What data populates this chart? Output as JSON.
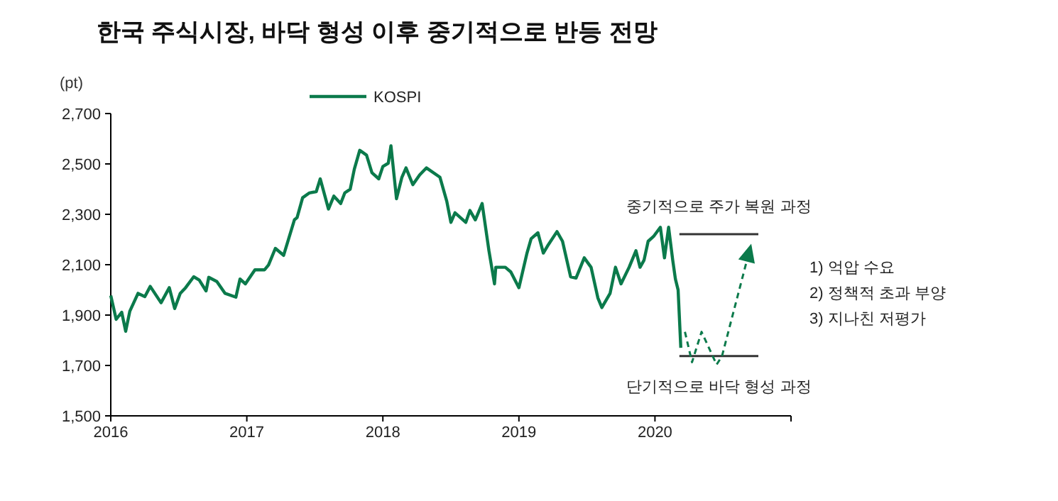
{
  "chart_data": {
    "type": "line",
    "title": "한국 주식시장, 바닥 형성 이후 중기적으로 반등 전망",
    "ylabel": "(pt)",
    "xlim": [
      2016,
      2021
    ],
    "xticks": [
      2016,
      2017,
      2018,
      2019,
      2020,
      {
        "value": 2021,
        "label": null
      }
    ],
    "ylim": [
      1500,
      2700
    ],
    "yticks": [
      {
        "value": 1500,
        "label": "1,500"
      },
      {
        "value": 1700,
        "label": "1,700"
      },
      {
        "value": 1900,
        "label": "1,900"
      },
      {
        "value": 2100,
        "label": "2,100"
      },
      {
        "value": 2300,
        "label": "2,300"
      },
      {
        "value": 2500,
        "label": "2,500"
      },
      {
        "value": 2700,
        "label": "2,700"
      }
    ],
    "grid": false,
    "legend": "top",
    "series": [
      {
        "name": "KOSPI",
        "color": "#0b7a4b",
        "line_style": "solid",
        "x": [
          2016.0,
          2016.04,
          2016.08,
          2016.11,
          2016.14,
          2016.2,
          2016.25,
          2016.29,
          2016.37,
          2016.43,
          2016.47,
          2016.51,
          2016.55,
          2016.61,
          2016.65,
          2016.7,
          2016.72,
          2016.78,
          2016.84,
          2016.92,
          2016.95,
          2016.99,
          2017.06,
          2017.13,
          2017.16,
          2017.21,
          2017.27,
          2017.35,
          2017.37,
          2017.41,
          2017.46,
          2017.51,
          2017.54,
          2017.6,
          2017.64,
          2017.69,
          2017.72,
          2017.76,
          2017.79,
          2017.83,
          2017.88,
          2017.92,
          2017.97,
          2018.0,
          2018.04,
          2018.06,
          2018.1,
          2018.14,
          2018.17,
          2018.22,
          2018.27,
          2018.32,
          2018.42,
          2018.47,
          2018.5,
          2018.53,
          2018.61,
          2018.64,
          2018.68,
          2018.73,
          2018.78,
          2018.82,
          2018.83,
          2018.9,
          2018.94,
          2019.0,
          2019.06,
          2019.09,
          2019.14,
          2019.18,
          2019.21,
          2019.28,
          2019.32,
          2019.38,
          2019.42,
          2019.48,
          2019.53,
          2019.58,
          2019.61,
          2019.67,
          2019.71,
          2019.75,
          2019.81,
          2019.86,
          2019.89,
          2019.92,
          2019.95,
          2019.99,
          2020.04,
          2020.07,
          2020.1,
          2020.13,
          2020.15,
          2020.17,
          2020.19
        ],
        "values": [
          1977,
          1883,
          1911,
          1836,
          1915,
          1986,
          1973,
          2014,
          1949,
          2009,
          1926,
          1986,
          2009,
          2052,
          2039,
          1996,
          2050,
          2033,
          1986,
          1971,
          2043,
          2024,
          2080,
          2080,
          2099,
          2165,
          2137,
          2278,
          2287,
          2366,
          2385,
          2390,
          2441,
          2321,
          2372,
          2343,
          2385,
          2400,
          2479,
          2554,
          2535,
          2465,
          2441,
          2490,
          2503,
          2572,
          2362,
          2447,
          2484,
          2418,
          2456,
          2484,
          2447,
          2352,
          2268,
          2306,
          2268,
          2315,
          2278,
          2343,
          2155,
          2024,
          2090,
          2090,
          2071,
          2009,
          2146,
          2203,
          2227,
          2146,
          2174,
          2231,
          2193,
          2052,
          2047,
          2127,
          2090,
          1968,
          1930,
          1986,
          2090,
          2024,
          2090,
          2155,
          2090,
          2118,
          2193,
          2212,
          2249,
          2127,
          2249,
          2118,
          2043,
          2000,
          1770
        ]
      },
      {
        "type": "line",
        "color": "#333333",
        "line_style": "solid",
        "x": [
          2020.18,
          2020.76
        ],
        "values": [
          2221,
          2221
        ]
      },
      {
        "type": "line",
        "color": "#333333",
        "line_style": "solid",
        "x": [
          2020.18,
          2020.76
        ],
        "values": [
          1737,
          1737
        ]
      }
    ],
    "annotations": [
      {
        "text": "중기적으로 주가 복원 과정",
        "x": 2020.47,
        "y": 2221
      },
      {
        "text": "단기적으로 바닥 형성 과정",
        "x": 2020.47,
        "y": 1737
      },
      "1) 억압 수요",
      "2) 정책적 초과 부양",
      "3) 지나친 저평가"
    ]
  }
}
